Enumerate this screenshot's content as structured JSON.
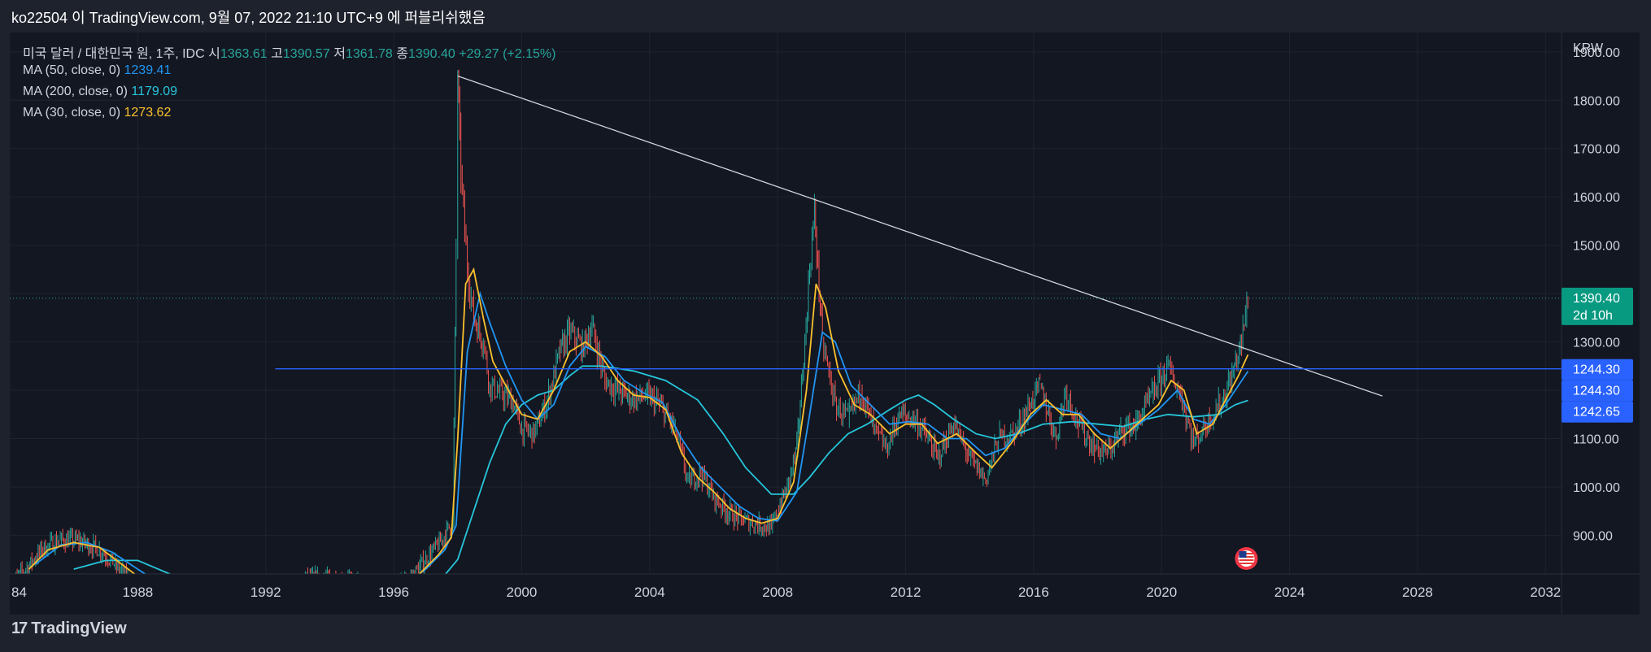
{
  "header": {
    "publish_line": "ko22504 이 TradingView.com, 9월 07, 2022 21:10 UTC+9 에 퍼블리쉬했음"
  },
  "legend": {
    "symbol": "미국 달러 / 대한민국 원, 1주, IDC",
    "ohlc": [
      {
        "label": "시",
        "value": "1363.61"
      },
      {
        "label": "고",
        "value": "1390.57"
      },
      {
        "label": "저",
        "value": "1361.78"
      },
      {
        "label": "종",
        "value": "1390.40"
      }
    ],
    "change": "+29.27 (+2.15%)",
    "ma": [
      {
        "label": "MA (50, close, 0)",
        "value": "1239.41",
        "color": "#2196f3"
      },
      {
        "label": "MA (200, close, 0)",
        "value": "1179.09",
        "color": "#26c6da"
      },
      {
        "label": "MA (30, close, 0)",
        "value": "1273.62",
        "color": "#fbc02d"
      }
    ]
  },
  "footer": {
    "brand": "TradingView"
  },
  "colors": {
    "bull": "#26a69a",
    "bear": "#ef5350",
    "ma50": "#2196f3",
    "ma200": "#26c6da",
    "ma30": "#fbc02d",
    "hline": "#2962ff",
    "trendline": "#d1d4dc",
    "bg": "#131722"
  },
  "chart_data": {
    "type": "candlestick",
    "title": "미국 달러 / 대한민국 원, 1주, IDC",
    "yunit": "KRW",
    "ylim": [
      820,
      1940
    ],
    "xlim": [
      1984,
      2032.5
    ],
    "x_ticks": [
      "84",
      "1988",
      "1992",
      "1996",
      "2000",
      "2004",
      "2008",
      "2012",
      "2016",
      "2020",
      "2024",
      "2028",
      "2032"
    ],
    "y_ticks": [
      "900.00",
      "1000.00",
      "1100.00",
      "1200.00",
      "1300.00",
      "1400.00",
      "1500.00",
      "1600.00",
      "1700.00",
      "1800.00",
      "1900.00"
    ],
    "price_series": [
      [
        1984,
        800
      ],
      [
        1984.5,
        830
      ],
      [
        1985.0,
        870
      ],
      [
        1985.5,
        890
      ],
      [
        1986.2,
        888
      ],
      [
        1986.8,
        870
      ],
      [
        1987.3,
        840
      ],
      [
        1987.8,
        800
      ],
      [
        1988.5,
        760
      ],
      [
        1993.2,
        810
      ],
      [
        1994.0,
        812
      ],
      [
        1994.8,
        805
      ],
      [
        1995.5,
        780
      ],
      [
        1996.5,
        810
      ],
      [
        1997.0,
        850
      ],
      [
        1997.5,
        890
      ],
      [
        1997.85,
        930
      ],
      [
        1997.95,
        1500
      ],
      [
        1998.0,
        1850
      ],
      [
        1998.1,
        1650
      ],
      [
        1998.3,
        1450
      ],
      [
        1998.5,
        1350
      ],
      [
        1998.8,
        1300
      ],
      [
        1999.0,
        1210
      ],
      [
        1999.4,
        1190
      ],
      [
        1999.7,
        1180
      ],
      [
        2000.0,
        1120
      ],
      [
        2000.4,
        1110
      ],
      [
        2000.8,
        1180
      ],
      [
        2001.2,
        1280
      ],
      [
        2001.5,
        1320
      ],
      [
        2001.9,
        1290
      ],
      [
        2002.2,
        1330
      ],
      [
        2002.6,
        1220
      ],
      [
        2003.0,
        1200
      ],
      [
        2003.5,
        1180
      ],
      [
        2003.9,
        1190
      ],
      [
        2004.3,
        1170
      ],
      [
        2004.8,
        1120
      ],
      [
        2005.2,
        1010
      ],
      [
        2005.6,
        1030
      ],
      [
        2006.0,
        980
      ],
      [
        2006.4,
        950
      ],
      [
        2006.9,
        930
      ],
      [
        2007.3,
        925
      ],
      [
        2007.8,
        915
      ],
      [
        2008.0,
        950
      ],
      [
        2008.3,
        1000
      ],
      [
        2008.6,
        1080
      ],
      [
        2008.85,
        1300
      ],
      [
        2009.0,
        1450
      ],
      [
        2009.15,
        1570
      ],
      [
        2009.4,
        1300
      ],
      [
        2009.8,
        1170
      ],
      [
        2010.2,
        1140
      ],
      [
        2010.6,
        1200
      ],
      [
        2011.0,
        1120
      ],
      [
        2011.4,
        1080
      ],
      [
        2011.8,
        1150
      ],
      [
        2012.3,
        1140
      ],
      [
        2012.7,
        1100
      ],
      [
        2013.0,
        1060
      ],
      [
        2013.5,
        1130
      ],
      [
        2014.0,
        1060
      ],
      [
        2014.5,
        1015
      ],
      [
        2014.9,
        1100
      ],
      [
        2015.4,
        1110
      ],
      [
        2015.9,
        1170
      ],
      [
        2016.2,
        1210
      ],
      [
        2016.7,
        1100
      ],
      [
        2017.0,
        1200
      ],
      [
        2017.4,
        1130
      ],
      [
        2017.9,
        1080
      ],
      [
        2018.3,
        1070
      ],
      [
        2018.8,
        1120
      ],
      [
        2019.2,
        1130
      ],
      [
        2019.7,
        1190
      ],
      [
        2020.2,
        1250
      ],
      [
        2020.6,
        1190
      ],
      [
        2021.0,
        1090
      ],
      [
        2021.5,
        1140
      ],
      [
        2021.9,
        1180
      ],
      [
        2022.2,
        1230
      ],
      [
        2022.5,
        1300
      ],
      [
        2022.7,
        1390.4
      ]
    ],
    "ma30": [
      [
        1984.6,
        830
      ],
      [
        1985.2,
        870
      ],
      [
        1986.0,
        885
      ],
      [
        1986.8,
        875
      ],
      [
        1987.5,
        840
      ],
      [
        1988.3,
        800
      ],
      [
        1993.6,
        805
      ],
      [
        1994.4,
        810
      ],
      [
        1995.1,
        790
      ],
      [
        1995.8,
        770
      ],
      [
        1996.8,
        820
      ],
      [
        1997.4,
        860
      ],
      [
        1997.8,
        895
      ],
      [
        1998.0,
        1100
      ],
      [
        1998.25,
        1420
      ],
      [
        1998.5,
        1450
      ],
      [
        1998.8,
        1350
      ],
      [
        1999.1,
        1260
      ],
      [
        1999.5,
        1210
      ],
      [
        2000.0,
        1150
      ],
      [
        2000.5,
        1140
      ],
      [
        2001.0,
        1200
      ],
      [
        2001.5,
        1280
      ],
      [
        2002.0,
        1300
      ],
      [
        2002.5,
        1270
      ],
      [
        2003.0,
        1220
      ],
      [
        2003.5,
        1190
      ],
      [
        2004.0,
        1185
      ],
      [
        2004.5,
        1160
      ],
      [
        2005.0,
        1070
      ],
      [
        2005.5,
        1020
      ],
      [
        2006.0,
        990
      ],
      [
        2006.5,
        955
      ],
      [
        2007.0,
        935
      ],
      [
        2007.5,
        925
      ],
      [
        2008.0,
        935
      ],
      [
        2008.5,
        1010
      ],
      [
        2008.9,
        1200
      ],
      [
        2009.2,
        1420
      ],
      [
        2009.5,
        1370
      ],
      [
        2009.9,
        1240
      ],
      [
        2010.4,
        1170
      ],
      [
        2010.9,
        1150
      ],
      [
        2011.5,
        1110
      ],
      [
        2012.0,
        1130
      ],
      [
        2012.5,
        1130
      ],
      [
        2013.0,
        1090
      ],
      [
        2013.6,
        1110
      ],
      [
        2014.2,
        1070
      ],
      [
        2014.7,
        1040
      ],
      [
        2015.3,
        1090
      ],
      [
        2015.9,
        1150
      ],
      [
        2016.4,
        1180
      ],
      [
        2016.9,
        1150
      ],
      [
        2017.4,
        1150
      ],
      [
        2017.9,
        1110
      ],
      [
        2018.4,
        1080
      ],
      [
        2018.9,
        1110
      ],
      [
        2019.4,
        1140
      ],
      [
        2019.9,
        1170
      ],
      [
        2020.3,
        1220
      ],
      [
        2020.7,
        1200
      ],
      [
        2021.1,
        1110
      ],
      [
        2021.6,
        1130
      ],
      [
        2022.0,
        1180
      ],
      [
        2022.4,
        1230
      ],
      [
        2022.7,
        1273.62
      ]
    ],
    "ma50": [
      [
        1984.8,
        840
      ],
      [
        1985.6,
        880
      ],
      [
        1986.4,
        885
      ],
      [
        1987.2,
        865
      ],
      [
        1988.0,
        830
      ],
      [
        1988.7,
        800
      ],
      [
        1993.8,
        805
      ],
      [
        1994.6,
        808
      ],
      [
        1995.4,
        790
      ],
      [
        1996.0,
        780
      ],
      [
        1997.0,
        830
      ],
      [
        1997.6,
        870
      ],
      [
        1997.95,
        920
      ],
      [
        1998.3,
        1280
      ],
      [
        1998.7,
        1400
      ],
      [
        1999.0,
        1340
      ],
      [
        1999.5,
        1250
      ],
      [
        2000.0,
        1180
      ],
      [
        2000.5,
        1140
      ],
      [
        2001.0,
        1170
      ],
      [
        2001.5,
        1250
      ],
      [
        2002.0,
        1290
      ],
      [
        2002.6,
        1270
      ],
      [
        2003.2,
        1220
      ],
      [
        2003.8,
        1195
      ],
      [
        2004.4,
        1175
      ],
      [
        2005.0,
        1100
      ],
      [
        2005.6,
        1040
      ],
      [
        2006.2,
        1000
      ],
      [
        2006.8,
        960
      ],
      [
        2007.4,
        935
      ],
      [
        2008.0,
        930
      ],
      [
        2008.6,
        990
      ],
      [
        2009.0,
        1150
      ],
      [
        2009.4,
        1320
      ],
      [
        2009.8,
        1300
      ],
      [
        2010.3,
        1210
      ],
      [
        2010.9,
        1170
      ],
      [
        2011.5,
        1130
      ],
      [
        2012.1,
        1135
      ],
      [
        2012.7,
        1130
      ],
      [
        2013.3,
        1100
      ],
      [
        2013.9,
        1100
      ],
      [
        2014.5,
        1065
      ],
      [
        2015.1,
        1080
      ],
      [
        2015.7,
        1130
      ],
      [
        2016.3,
        1170
      ],
      [
        2016.9,
        1160
      ],
      [
        2017.5,
        1150
      ],
      [
        2018.1,
        1110
      ],
      [
        2018.7,
        1100
      ],
      [
        2019.3,
        1130
      ],
      [
        2019.9,
        1160
      ],
      [
        2020.5,
        1200
      ],
      [
        2021.0,
        1140
      ],
      [
        2021.5,
        1130
      ],
      [
        2022.0,
        1170
      ],
      [
        2022.7,
        1239.41
      ]
    ],
    "ma200": [
      [
        1986.0,
        830
      ],
      [
        1987.0,
        848
      ],
      [
        1988.0,
        848
      ],
      [
        1989.0,
        820
      ],
      [
        1989.6,
        800
      ],
      [
        1996.8,
        800
      ],
      [
        1997.5,
        810
      ],
      [
        1998.0,
        850
      ],
      [
        1998.5,
        950
      ],
      [
        1999.0,
        1050
      ],
      [
        1999.5,
        1130
      ],
      [
        2000.0,
        1170
      ],
      [
        2000.5,
        1190
      ],
      [
        2001.0,
        1200
      ],
      [
        2001.5,
        1230
      ],
      [
        2001.9,
        1250
      ],
      [
        2002.5,
        1250
      ],
      [
        2003.5,
        1240
      ],
      [
        2004.5,
        1220
      ],
      [
        2005.5,
        1180
      ],
      [
        2006.3,
        1110
      ],
      [
        2007.0,
        1040
      ],
      [
        2007.8,
        985
      ],
      [
        2008.5,
        985
      ],
      [
        2009.0,
        1020
      ],
      [
        2009.6,
        1070
      ],
      [
        2010.2,
        1110
      ],
      [
        2010.8,
        1130
      ],
      [
        2011.5,
        1160
      ],
      [
        2012.0,
        1180
      ],
      [
        2012.4,
        1190
      ],
      [
        2012.9,
        1170
      ],
      [
        2013.5,
        1140
      ],
      [
        2014.2,
        1110
      ],
      [
        2014.8,
        1100
      ],
      [
        2015.5,
        1110
      ],
      [
        2016.3,
        1130
      ],
      [
        2017.2,
        1135
      ],
      [
        2018.0,
        1130
      ],
      [
        2018.8,
        1125
      ],
      [
        2019.5,
        1140
      ],
      [
        2020.2,
        1150
      ],
      [
        2021.0,
        1145
      ],
      [
        2021.8,
        1150
      ],
      [
        2022.3,
        1170
      ],
      [
        2022.7,
        1179.09
      ]
    ],
    "trendline": {
      "x1": 1998.0,
      "y1": 1850,
      "x2": 2026.9,
      "y2": 1188
    },
    "horizontal_line": {
      "y": 1244.3,
      "x_start": 1992.3
    },
    "last_price_line": 1390.4,
    "price_labels": [
      {
        "value": 1390.4,
        "text": "1390.40",
        "sub": "2d 10h",
        "bg": "#089981"
      },
      {
        "value": 1244.3,
        "text": "1244.30",
        "bg": "#2962ff"
      },
      {
        "value": 1244.3,
        "text": "1244.30",
        "bg": "#2962ff"
      },
      {
        "value": 1242.65,
        "text": "1242.65",
        "bg": "#2962ff"
      }
    ],
    "event_marker": {
      "x": 2022.65,
      "icon": "us-flag-icon"
    }
  }
}
